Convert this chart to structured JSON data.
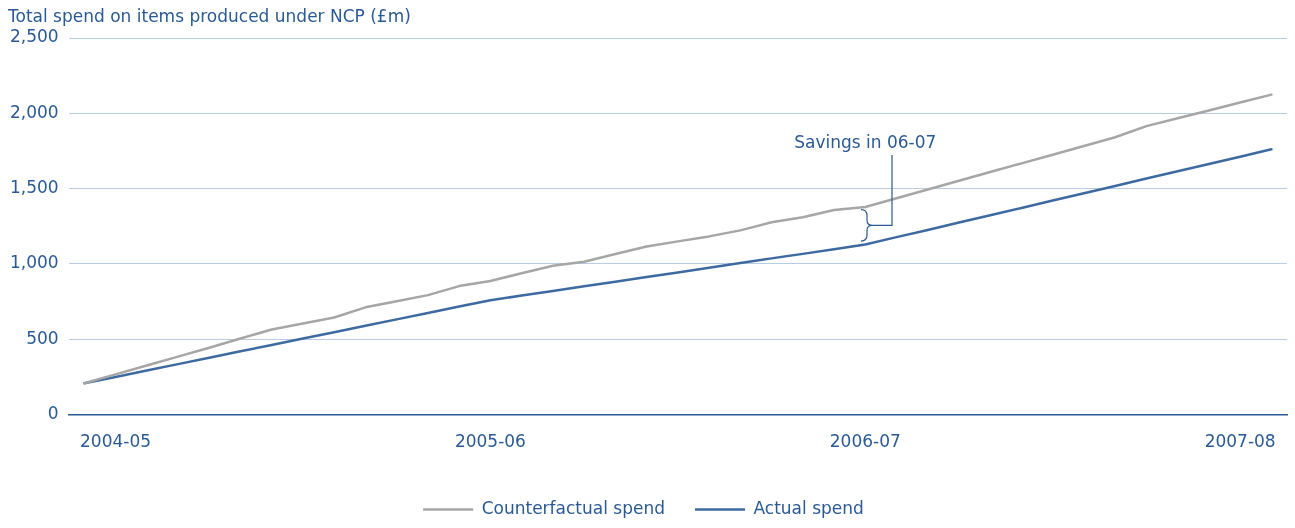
{
  "chart_data": {
    "type": "line",
    "ylabel": "Total spend on items produced under NCP (£m)",
    "categories": [
      null,
      "2004-05",
      null,
      null,
      null,
      null,
      null,
      null,
      null,
      null,
      null,
      null,
      null,
      "2005-06",
      null,
      null,
      null,
      null,
      null,
      null,
      null,
      null,
      null,
      null,
      null,
      "2006-07",
      null,
      null,
      null,
      null,
      null,
      null,
      null,
      null,
      null,
      null,
      null,
      "2007-08",
      null
    ],
    "ylim": [
      0,
      2500
    ],
    "yticks": [
      0,
      500,
      {
        "value": 1000,
        "label": "1,000"
      },
      {
        "value": 1500,
        "label": "1,500"
      },
      {
        "value": 2000,
        "label": "2,000"
      },
      {
        "value": 2500,
        "label": "2,500"
      }
    ],
    "grid": "y",
    "legend": "bottom",
    "marker": "none",
    "line_style": "solid",
    "series": [
      {
        "name": "Counterfactual spend",
        "color": "#a6a6a6",
        "values": [
          208,
          267,
          326,
          385,
          444,
          505,
          565,
          605,
          645,
          712,
          753,
          793,
          853,
          887,
          938,
          988,
          1015,
          1066,
          1116,
          1150,
          1183,
          1223,
          1277,
          1310,
          1358,
          1378,
          1436,
          1494,
          1552,
          1610,
          1668,
          1725,
          1783,
          1841,
          1915,
          1967,
          2019,
          2072,
          2124
        ]
      },
      {
        "name": "Actual spend",
        "color": "#3d6aa0",
        "values": [
          208,
          250,
          293,
          335,
          378,
          420,
          462,
          505,
          547,
          590,
          632,
          674,
          717,
          759,
          790,
          821,
          852,
          882,
          913,
          944,
          975,
          1006,
          1037,
          1067,
          1098,
          1129,
          1178,
          1226,
          1275,
          1323,
          1372,
          1421,
          1469,
          1518,
          1567,
          1615,
          1664,
          1712,
          1761
        ]
      }
    ],
    "annotations": [
      "Savings in 06-07"
    ]
  }
}
